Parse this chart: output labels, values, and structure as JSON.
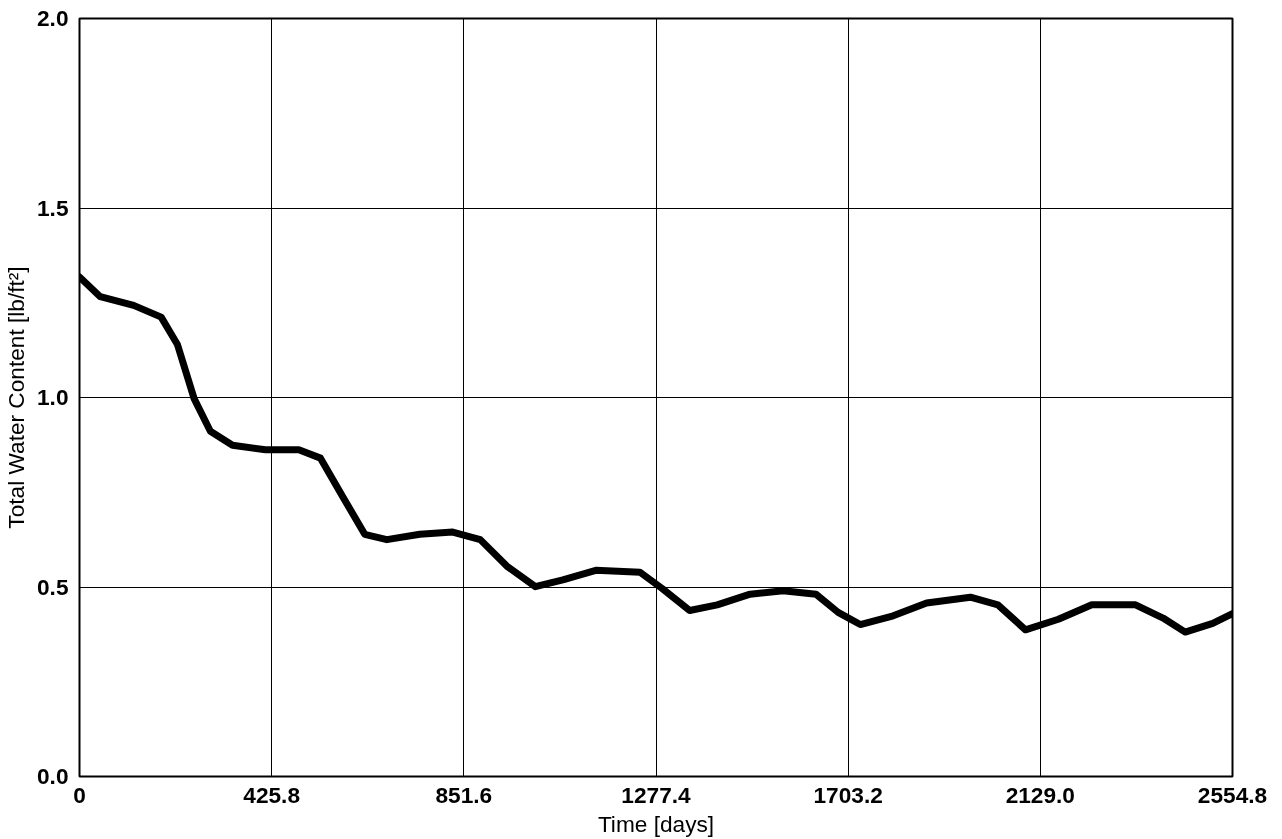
{
  "chart_data": {
    "type": "line",
    "xlabel": "Time [days]",
    "ylabel": "Total Water Content [lb/ft²]",
    "x": [
      0,
      46,
      120,
      181,
      217,
      254,
      290,
      339,
      412,
      486,
      534,
      583,
      632,
      681,
      754,
      827,
      888,
      949,
      1010,
      1071,
      1144,
      1242,
      1291,
      1352,
      1413,
      1486,
      1559,
      1632,
      1681,
      1730,
      1803,
      1877,
      1974,
      2035,
      2096,
      2169,
      2243,
      2340,
      2401,
      2450,
      2511,
      2554.8
    ],
    "series": [
      {
        "color": "#000000",
        "values": [
          1.318,
          1.266,
          1.243,
          1.212,
          1.14,
          0.997,
          0.911,
          0.874,
          0.862,
          0.862,
          0.84,
          0.739,
          0.639,
          0.625,
          0.639,
          0.645,
          0.625,
          0.553,
          0.501,
          0.519,
          0.544,
          0.539,
          0.496,
          0.438,
          0.453,
          0.481,
          0.49,
          0.481,
          0.433,
          0.401,
          0.424,
          0.458,
          0.473,
          0.453,
          0.387,
          0.415,
          0.453,
          0.453,
          0.418,
          0.381,
          0.404,
          0.43
        ]
      }
    ],
    "xlim": [
      0,
      2554.8
    ],
    "ylim": [
      0,
      2.0
    ],
    "xticks": [
      0,
      425.8,
      851.6,
      1277.4,
      1703.2,
      {
        "value": 2129.0,
        "label": "2129.0"
      },
      2554.8
    ],
    "yticks": [
      {
        "value": 0,
        "label": "0.0"
      },
      0.5,
      {
        "value": 1,
        "label": "1.0"
      },
      1.5,
      {
        "value": 2,
        "label": "2.0"
      }
    ],
    "grid": true,
    "marker": "none",
    "line_style": "solid"
  }
}
